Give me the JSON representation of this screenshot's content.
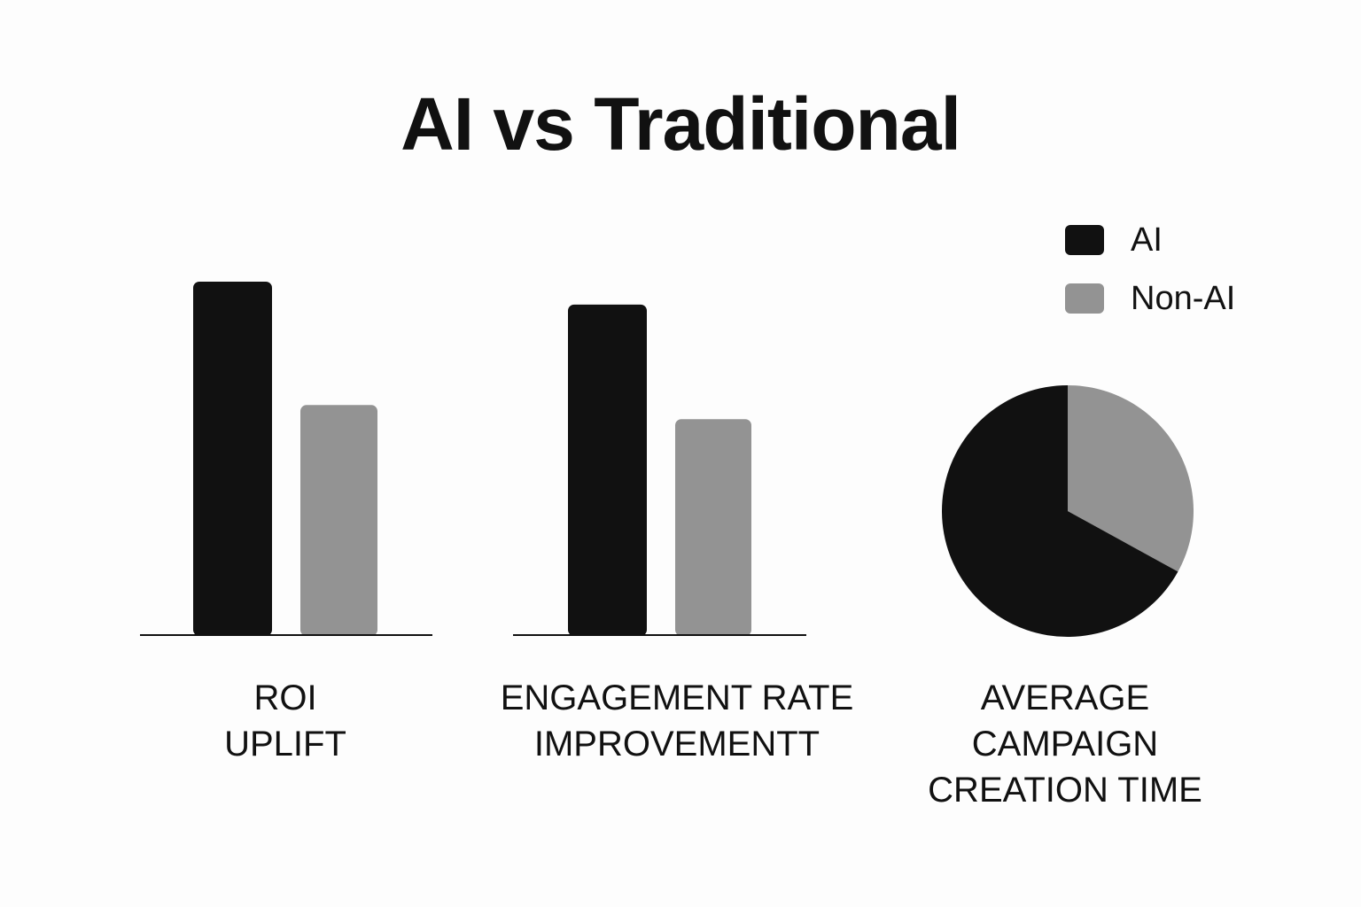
{
  "colors": {
    "ai": "#111111",
    "non_ai": "#939393",
    "axis": "#111111"
  },
  "chart_data": {
    "title": "AI vs Traditional",
    "legend": {
      "placement": "top-right",
      "items": [
        {
          "key": "ai",
          "label": "AI"
        },
        {
          "key": "non_ai",
          "label": "Non-AI"
        }
      ]
    },
    "charts": [
      {
        "type": "bar",
        "category_lines": [
          "ROI",
          "UPLIFT"
        ],
        "series": [
          {
            "name": "AI",
            "value": 1.0
          },
          {
            "name": "Non-AI",
            "value": 0.65
          }
        ]
      },
      {
        "type": "bar",
        "category_lines": [
          "ENGAGEMENT RATE",
          "IMPROVEMENTT"
        ],
        "series": [
          {
            "name": "AI",
            "value": 0.935
          },
          {
            "name": "Non-AI",
            "value": 0.61
          }
        ]
      },
      {
        "type": "pie",
        "category_lines": [
          "AVERAGE",
          "CAMPAIGN",
          "CREATION TIME"
        ],
        "slices": [
          {
            "name": "Non-AI",
            "value": 0.33
          },
          {
            "name": "AI",
            "value": 0.67
          }
        ]
      }
    ]
  }
}
